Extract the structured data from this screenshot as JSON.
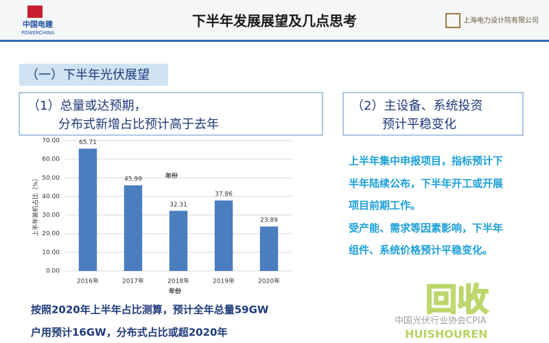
{
  "header": {
    "logo_left": "中国电建",
    "logo_left_sub": "POWERCHINA",
    "title": "下半年发展展望及几点思考",
    "logo_right": "上海电力设计院有限公司"
  },
  "section_title": "（一）下半年光伏展望",
  "left_box": [
    "（1）总量或达预期，",
    "分布式新增占比预计高于去年"
  ],
  "right_box": [
    "（2）主设备、系统投资",
    "预计平稳变化"
  ],
  "right_text": [
    "上半年集中申报项目，指标预计下",
    "半年陆续公布，下半年开工或开展",
    "项目前期工作。",
    "受产能、需求等因素影响，下半年",
    "组件、系统价格预计平稳变化。"
  ],
  "bottom_text": [
    "按照2020年上半年占比测算，预计全年总量59GW",
    "户用预计16GW，分布式占比或超2020年"
  ],
  "watermark": [
    "回收",
    "HUISHOUREN",
    "中国光伏行业协会CPIA"
  ],
  "chart_data": {
    "type": "bar",
    "categories": [
      "2016年",
      "2017年",
      "2018年",
      "2019年",
      "2020年"
    ],
    "values": [
      65.71,
      45.99,
      32.31,
      37.86,
      23.89
    ],
    "color": "#4a7ebf",
    "ylabel": "上半年装机占比（%）",
    "xlabel": "年份",
    "annotations": [
      "年份"
    ],
    "ylim": [
      0,
      70
    ],
    "yticks": [
      {
        "value": 0,
        "label": "0.00"
      },
      {
        "value": 10,
        "label": "10.00"
      },
      {
        "value": 20,
        "label": "20.00"
      },
      {
        "value": 30,
        "label": "30.00"
      },
      {
        "value": 40,
        "label": "40.00"
      },
      {
        "value": 50,
        "label": "50.00"
      },
      {
        "value": 60,
        "label": "60.00"
      },
      {
        "value": 70,
        "label": "70.00"
      }
    ],
    "grid": true
  }
}
